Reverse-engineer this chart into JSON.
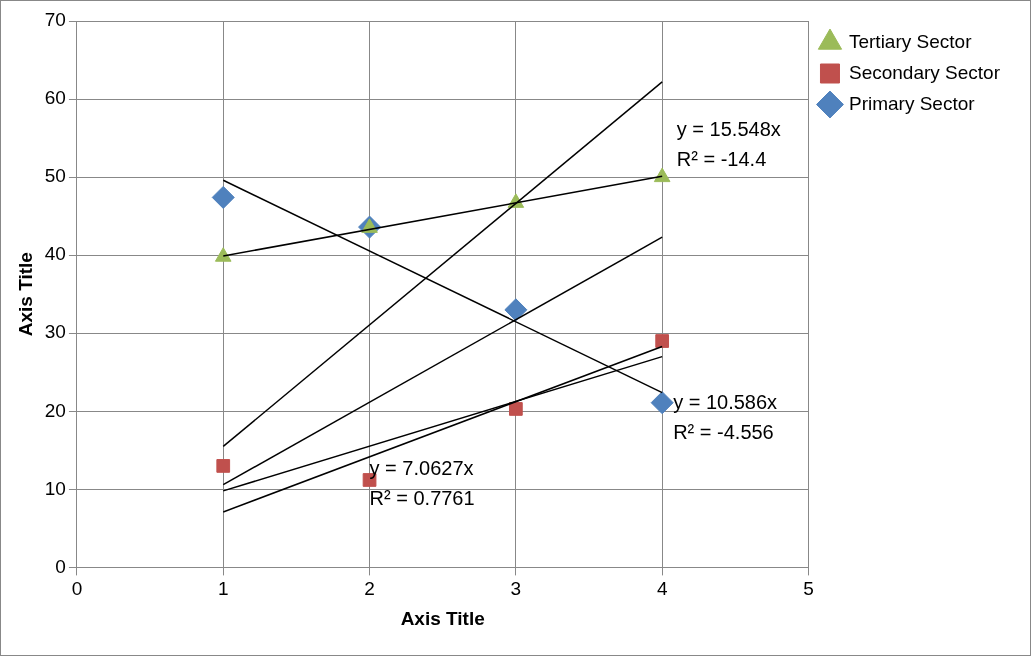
{
  "chart_data": {
    "type": "scatter",
    "xlabel": "Axis Title",
    "ylabel": "Axis Title",
    "x": [
      1,
      2,
      3,
      4
    ],
    "series": [
      {
        "name": "Primary Sector",
        "color": "#4f81bd",
        "marker": "diamond",
        "values": [
          47.4,
          43.6,
          33,
          21.1
        ]
      },
      {
        "name": "Secondary Sector",
        "color": "#c0504d",
        "marker": "square",
        "values": [
          13,
          11.2,
          20.3,
          29
        ]
      },
      {
        "name": "Tertiary Sector",
        "color": "#9bbb59",
        "marker": "triangle",
        "values": [
          39.8,
          43.5,
          46.7,
          50
        ]
      },
      {
        "type": "line",
        "color": "#000000",
        "values": [
          49.6,
          null,
          null,
          22.4
        ]
      },
      {
        "type": "line",
        "color": "#000000",
        "values": [
          39.9,
          null,
          null,
          50.1
        ]
      },
      {
        "type": "line",
        "color": "#000000",
        "values": [
          9.8,
          null,
          null,
          27
        ]
      },
      {
        "type": "line",
        "color": "#000000",
        "values": [
          15.5,
          null,
          null,
          62.2
        ]
      },
      {
        "type": "line",
        "color": "#000000",
        "values": [
          10.6,
          null,
          null,
          42.3
        ]
      },
      {
        "type": "line",
        "color": "#000000",
        "values": [
          7.1,
          null,
          null,
          28.3
        ]
      }
    ],
    "xlim": [
      0,
      5
    ],
    "xticks": [
      0,
      1,
      2,
      3,
      4,
      5
    ],
    "ylim": [
      0,
      70
    ],
    "yticks": [
      0,
      10,
      20,
      30,
      40,
      50,
      60,
      70
    ],
    "grid": true,
    "legend": "right",
    "annotations": [
      "y = 15.548x\nR² = -14.4",
      "y = 10.586x\nR² = -4.556",
      "y = 7.0627x\nR² = 0.7761"
    ]
  }
}
